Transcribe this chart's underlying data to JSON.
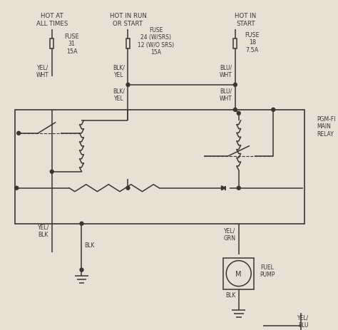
{
  "bg_color": "#e8e0d4",
  "line_color": "#3a3530",
  "text_color": "#3a3530",
  "figsize": [
    4.74,
    4.64
  ],
  "dpi": 100,
  "labels": {
    "hot_at_all_times": "HOT AT\nALL TIMES",
    "hot_in_run": "HOT IN RUN\nOR START",
    "hot_in_start": "HOT IN\nSTART",
    "fuse1": "FUSE\n31\n15A",
    "fuse2": "FUSE\n24 (W/SRS)\n12 (W/O SRS)\n15A",
    "fuse3": "FUSE\n18\n7.5A",
    "wire_yel_wht": "YEL/\nWHT",
    "wire_blk_yel1": "BLK/\nYEL",
    "wire_blu_wht1": "BLU/\nWHT",
    "wire_blk_yel2": "BLK/\nYEL",
    "wire_blu_wht2": "BLU/\nWHT",
    "wire_yel_blk": "YEL/\nBLK",
    "wire_blk": "BLK",
    "wire_yel_grn": "YEL/\nGRN",
    "wire_blk2": "BLK",
    "wire_yel_blu": "YEL/\nBLU",
    "pgm_fi": "PGM-FI\nMAIN\nRELAY",
    "fuel_pump": "FUEL\nPUMP"
  }
}
